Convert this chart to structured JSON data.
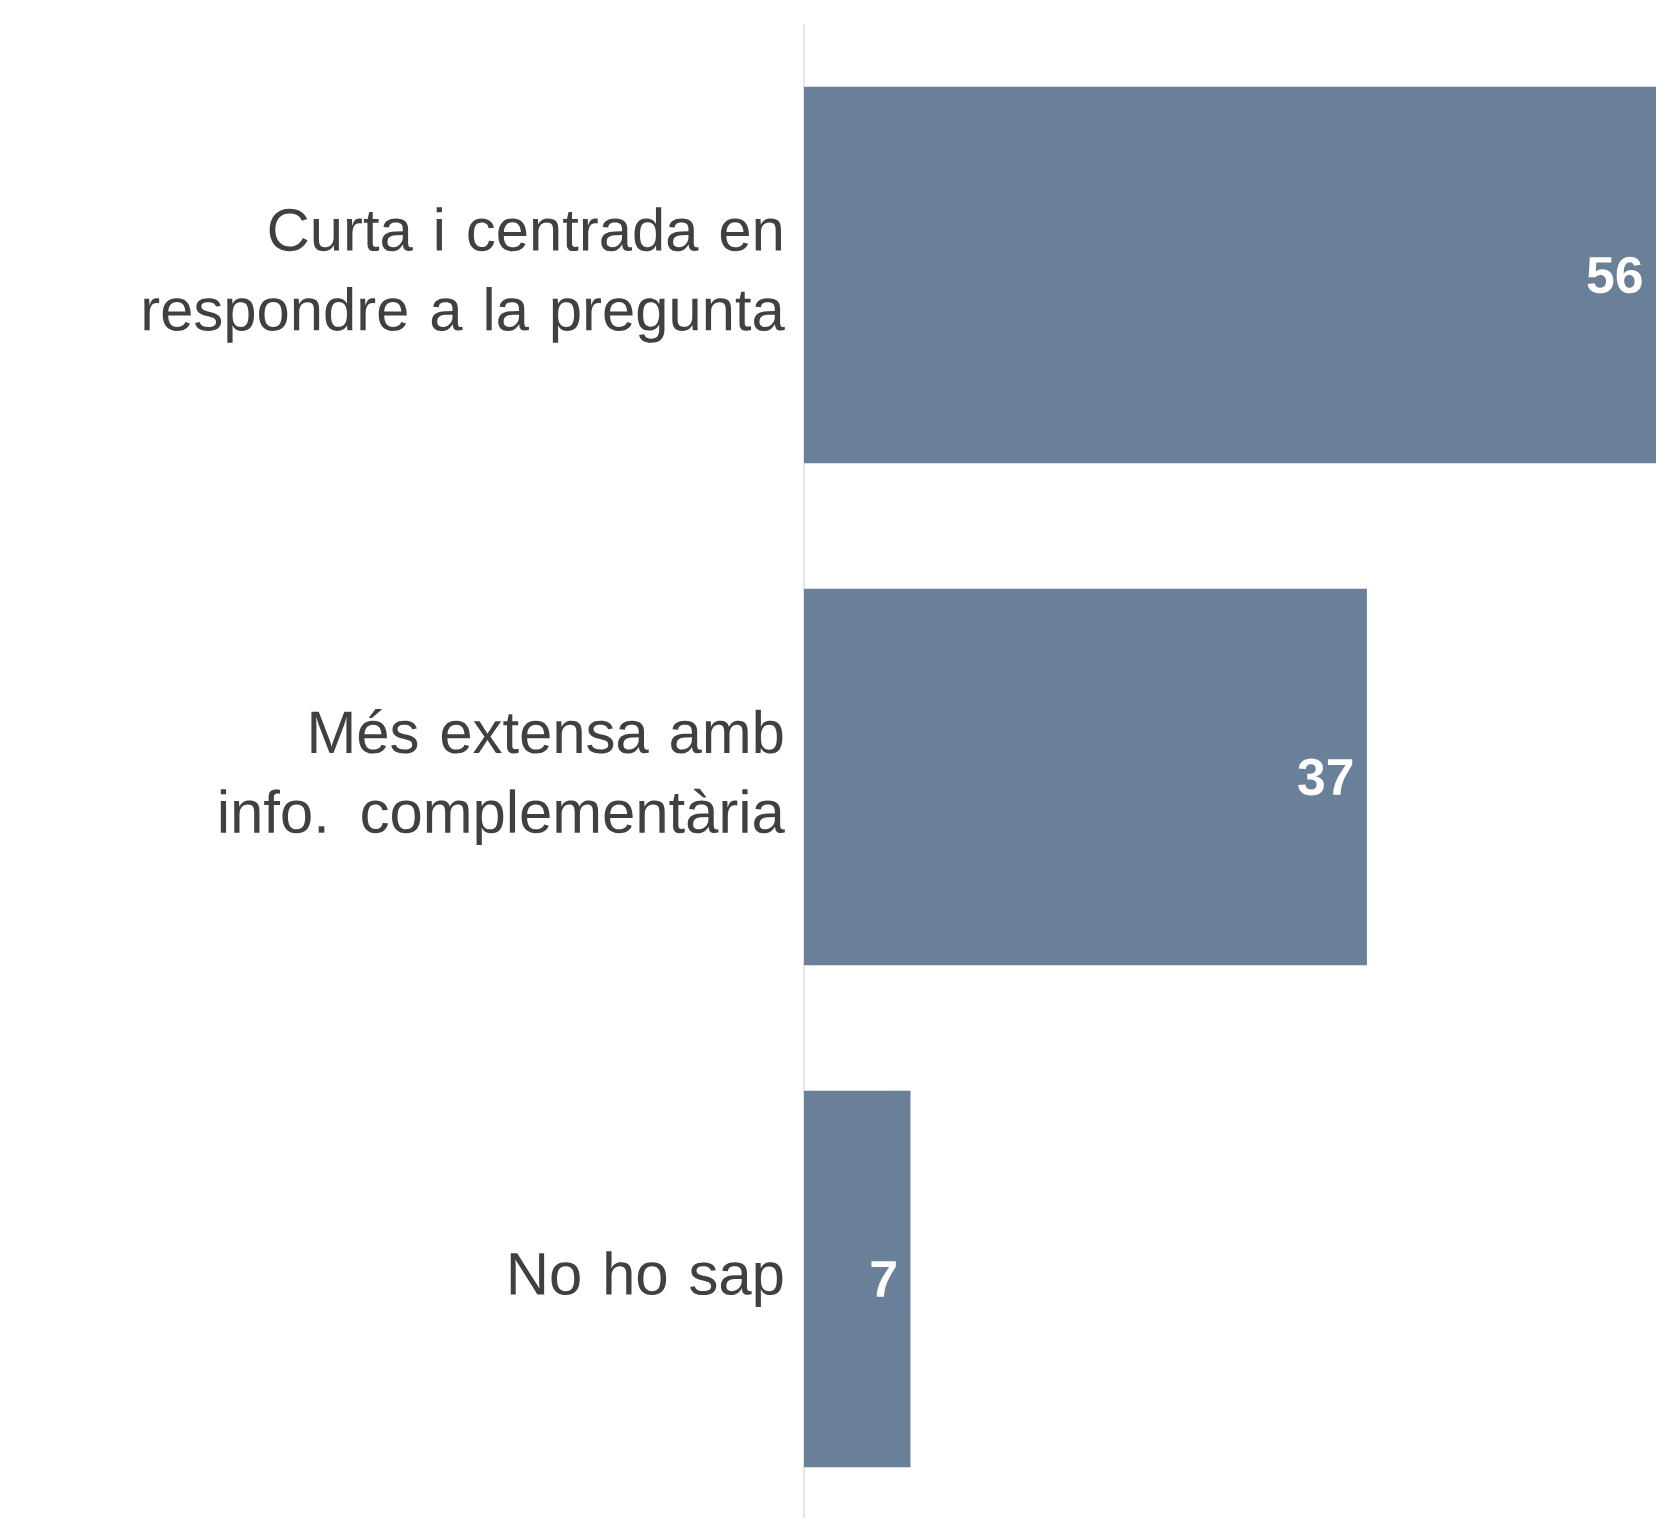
{
  "chart_data": {
    "type": "bar",
    "orientation": "horizontal",
    "categories": [
      "Curta i centrada en respondre a la pregunta",
      "Més extensa amb info. complementària",
      "No ho sap"
    ],
    "values": [
      56,
      37,
      7
    ],
    "color": "#6a8099",
    "xlim": [
      0,
      56
    ],
    "data_labels": true
  }
}
